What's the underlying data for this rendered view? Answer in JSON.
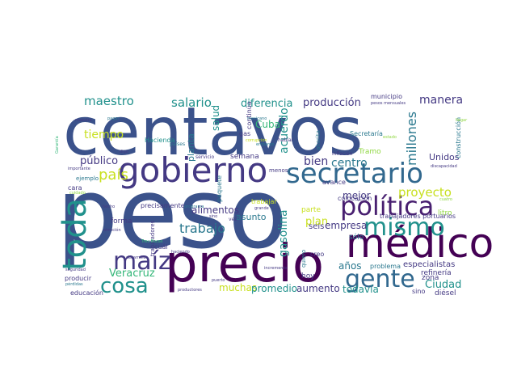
{
  "palette": {
    "navy": "#3b528b",
    "indigo": "#443983",
    "purple": "#481f70",
    "deep": "#440154",
    "slate": "#31688e",
    "teal": "#21918c",
    "teal2": "#2a788e",
    "green": "#35b779",
    "lime": "#90d743",
    "yellow": "#c8e020",
    "gray": "#5c6b73"
  },
  "words": [
    {
      "id": "centavos",
      "text": "centavos",
      "color": "navy"
    },
    {
      "id": "peso",
      "text": "peso",
      "color": "navy"
    },
    {
      "id": "precio",
      "text": "precio",
      "color": "deep"
    },
    {
      "id": "medico",
      "text": "médico",
      "color": "deep"
    },
    {
      "id": "gobierno",
      "text": "gobierno",
      "color": "indigo"
    },
    {
      "id": "secretario",
      "text": "secretario",
      "color": "slate"
    },
    {
      "id": "politica",
      "text": "política",
      "color": "purple"
    },
    {
      "id": "mismo",
      "text": "mismo",
      "color": "teal"
    },
    {
      "id": "gente",
      "text": "gente",
      "color": "slate"
    },
    {
      "id": "toda",
      "text": "toda",
      "color": "teal"
    },
    {
      "id": "maiz",
      "text": "maíz",
      "color": "indigo"
    },
    {
      "id": "cosa",
      "text": "cosa",
      "color": "teal"
    },
    {
      "id": "trabajo",
      "text": "trabajo",
      "color": "teal2"
    },
    {
      "id": "gasolina",
      "text": "gasolina",
      "color": "teal"
    },
    {
      "id": "maestro",
      "text": "maestro",
      "color": "teal"
    },
    {
      "id": "salario",
      "text": "salario",
      "color": "teal"
    },
    {
      "id": "diferencia",
      "text": "diferencia",
      "color": "teal"
    },
    {
      "id": "produccion",
      "text": "producción",
      "color": "indigo"
    },
    {
      "id": "manera",
      "text": "manera",
      "color": "indigo"
    },
    {
      "id": "millones",
      "text": "millones",
      "color": "teal2"
    },
    {
      "id": "tiempo",
      "text": "tiempo",
      "color": "yellow"
    },
    {
      "id": "pais",
      "text": "país",
      "color": "yellow"
    },
    {
      "id": "publico",
      "text": "público",
      "color": "indigo"
    },
    {
      "id": "bien",
      "text": "bien",
      "color": "indigo"
    },
    {
      "id": "centro",
      "text": "centro",
      "color": "teal2"
    },
    {
      "id": "proyecto",
      "text": "proyecto",
      "color": "yellow"
    },
    {
      "id": "plan",
      "text": "plan",
      "color": "yellow"
    },
    {
      "id": "mejor",
      "text": "mejor",
      "color": "indigo"
    },
    {
      "id": "alimentos",
      "text": "alimentos",
      "color": "indigo"
    },
    {
      "id": "asunto",
      "text": "asunto",
      "color": "teal2"
    },
    {
      "id": "empresa",
      "text": "empresa",
      "color": "indigo"
    },
    {
      "id": "veracruz",
      "text": "Veracruz",
      "color": "green"
    },
    {
      "id": "muchas",
      "text": "muchas",
      "color": "yellow"
    },
    {
      "id": "promedio",
      "text": "promedio",
      "color": "teal"
    },
    {
      "id": "aumento",
      "text": "aumento",
      "color": "indigo"
    },
    {
      "id": "todavia",
      "text": "todavía",
      "color": "teal"
    },
    {
      "id": "ciudad",
      "text": "Ciudad",
      "color": "teal"
    },
    {
      "id": "especialistas",
      "text": "especialistas",
      "color": "indigo"
    },
    {
      "id": "anos",
      "text": "años",
      "color": "teal2"
    },
    {
      "id": "acuerdo",
      "text": "acuerdo",
      "color": "teal"
    },
    {
      "id": "cuba",
      "text": "Cuba",
      "color": "green"
    },
    {
      "id": "salud",
      "text": "salud",
      "color": "teal"
    },
    {
      "id": "planta",
      "text": "planta",
      "color": "teal2"
    },
    {
      "id": "unidos",
      "text": "Unidos",
      "color": "indigo"
    },
    {
      "id": "construccion",
      "text": "construcción",
      "color": "teal2"
    },
    {
      "id": "refineria",
      "text": "refinería",
      "color": "indigo"
    },
    {
      "id": "zona",
      "text": "zona",
      "color": "indigo"
    },
    {
      "id": "litro",
      "text": "litro",
      "color": "lime"
    },
    {
      "id": "diesel",
      "text": "diésel",
      "color": "indigo"
    },
    {
      "id": "sino",
      "text": "sino",
      "color": "indigo"
    },
    {
      "id": "problema",
      "text": "problema",
      "color": "teal2"
    },
    {
      "id": "educacion",
      "text": "educación",
      "color": "indigo"
    },
    {
      "id": "producir",
      "text": "producir",
      "color": "indigo"
    },
    {
      "id": "forma",
      "text": "forma",
      "color": "indigo"
    },
    {
      "id": "seis",
      "text": "seis",
      "color": "indigo"
    },
    {
      "id": "hoy",
      "text": "hoy",
      "color": "indigo"
    },
    {
      "id": "parte",
      "text": "parte",
      "color": "yellow"
    },
    {
      "id": "solo",
      "text": "sólo",
      "color": "teal2"
    },
    {
      "id": "semana",
      "text": "semana",
      "color": "indigo"
    },
    {
      "id": "hacienda",
      "text": "Hacienda",
      "color": "teal"
    },
    {
      "id": "secretaria",
      "text": "Secretaría",
      "color": "teal2"
    },
    {
      "id": "tramo",
      "text": "Tramo",
      "color": "lime"
    },
    {
      "id": "municipio",
      "text": "municipio",
      "color": "indigo"
    },
    {
      "id": "pesos_mensuales",
      "text": "pesos mensuales",
      "color": "indigo"
    },
    {
      "id": "cara",
      "text": "cara",
      "color": "indigo"
    },
    {
      "id": "precisamente",
      "text": "precisamente",
      "color": "indigo"
    },
    {
      "id": "colocacion",
      "text": "colocación",
      "color": "indigo"
    },
    {
      "id": "trabajadores_portuarios",
      "text": "trabajadores portuarios",
      "color": "indigo"
    },
    {
      "id": "trabajar",
      "text": "trabajar",
      "color": "yellow"
    },
    {
      "id": "avance",
      "text": "avance",
      "color": "indigo"
    },
    {
      "id": "quiero",
      "text": "quiero",
      "color": "teal2"
    },
    {
      "id": "paquete",
      "text": "paquete",
      "color": "teal2"
    },
    {
      "id": "menos",
      "text": "menos",
      "color": "indigo"
    },
    {
      "id": "continua",
      "text": "continúa",
      "color": "indigo"
    },
    {
      "id": "gas",
      "text": "gas",
      "color": "indigo"
    },
    {
      "id": "hablar",
      "text": "hablar",
      "color": "indigo"
    },
    {
      "id": "ahorita",
      "text": "ahorita",
      "color": "teal2"
    },
    {
      "id": "inflacion",
      "text": "inflación",
      "color": "indigo"
    },
    {
      "id": "discapacidad",
      "text": "discapacidad",
      "color": "indigo"
    },
    {
      "id": "llegar",
      "text": "llegar",
      "color": "lime"
    },
    {
      "id": "servicio",
      "text": "servicio",
      "color": "indigo"
    },
    {
      "id": "paises",
      "text": "países",
      "color": "teal2"
    },
    {
      "id": "trabajadores",
      "text": "trabajadores",
      "color": "indigo"
    },
    {
      "id": "cual",
      "text": "cuál",
      "color": "indigo"
    },
    {
      "id": "creo",
      "text": "creo",
      "color": "indigo"
    },
    {
      "id": "incremento",
      "text": "incremento",
      "color": "indigo"
    },
    {
      "id": "productores",
      "text": "productores",
      "color": "indigo"
    },
    {
      "id": "desarrollo",
      "text": "desarrollo",
      "color": "indigo"
    },
    {
      "id": "atencion",
      "text": "atención",
      "color": "indigo"
    },
    {
      "id": "hecho",
      "text": "hecho",
      "color": "indigo"
    },
    {
      "id": "tres_bocas",
      "text": "Tres Bocas",
      "color": "green"
    },
    {
      "id": "haciendo",
      "text": "haciendo",
      "color": "indigo"
    },
    {
      "id": "puerto",
      "text": "puerto",
      "color": "indigo"
    },
    {
      "id": "vez",
      "text": "vez",
      "color": "indigo"
    },
    {
      "id": "grande",
      "text": "grande",
      "color": "indigo"
    },
    {
      "id": "programa",
      "text": "programa",
      "color": "teal2"
    },
    {
      "id": "maestra",
      "text": "maestra",
      "color": "indigo"
    },
    {
      "id": "pagar",
      "text": "pagar",
      "color": "teal2"
    },
    {
      "id": "importante",
      "text": "importante",
      "color": "indigo"
    },
    {
      "id": "seguridad",
      "text": "seguridad",
      "color": "indigo"
    },
    {
      "id": "perdidas",
      "text": "pérdidas",
      "color": "teal2"
    },
    {
      "id": "digo",
      "text": "digo",
      "color": "indigo"
    },
    {
      "id": "garantia",
      "text": "Garantía",
      "color": "green"
    },
    {
      "id": "ejemplo",
      "text": "ejemplo",
      "color": "teal2"
    },
    {
      "id": "cuatro",
      "text": "cuatro",
      "color": "lime"
    },
    {
      "id": "embargo",
      "text": "embargo",
      "color": "teal2"
    },
    {
      "id": "corrupcion",
      "text": "corrupción",
      "color": "yellow"
    },
    {
      "id": "mexicano",
      "text": "mexicano",
      "color": "teal2"
    },
    {
      "id": "sinc",
      "text": "sino",
      "color": "indigo"
    },
    {
      "id": "cuidado",
      "text": "cuidado",
      "color": "lime"
    },
    {
      "id": "estado",
      "text": "estado",
      "color": "lime"
    }
  ]
}
